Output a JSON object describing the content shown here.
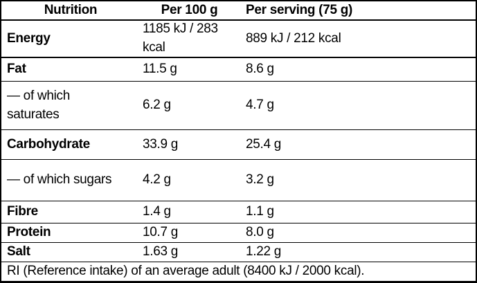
{
  "colors": {
    "background": "#ffffff",
    "text": "#000000",
    "border": "#000000"
  },
  "table": {
    "columns": {
      "nutrient": "Nutrition",
      "per_100g": "Per 100 g",
      "per_serving": "Per serving (75 g)"
    },
    "rows": [
      {
        "name": "Energy",
        "per100": "1185 kJ / 283\nkcal",
        "serving": "889 kJ / 212 kcal"
      },
      {
        "name": "Fat",
        "per100": "11.5 g",
        "serving": "8.6 g"
      },
      {
        "name": "— of which\nsaturates",
        "per100": "6.2 g",
        "serving": "4.7 g"
      },
      {
        "name": "Carbohydrate",
        "per100": "33.9 g",
        "serving": "25.4 g"
      },
      {
        "name": "— of which sugars",
        "per100": "4.2 g",
        "serving": "3.2 g"
      },
      {
        "name": "Fibre",
        "per100": "1.4 g",
        "serving": "1.1 g"
      },
      {
        "name": "Protein",
        "per100": "10.7 g",
        "serving": "8.0 g"
      },
      {
        "name": "Salt",
        "per100": "1.63 g",
        "serving": "1.22 g"
      }
    ],
    "footer": "RI (Reference intake) of an average adult (8400 kJ / 2000 kcal)."
  }
}
